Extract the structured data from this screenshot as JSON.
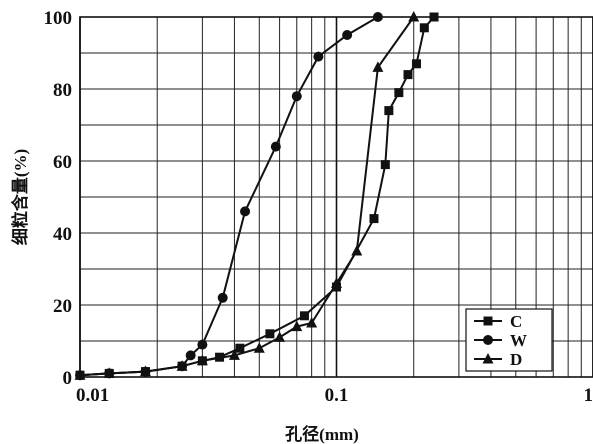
{
  "chart_data": {
    "type": "scatter",
    "title": "",
    "xlabel": "孔径(mm)",
    "ylabel": "细粒含量(%)",
    "xscale": "log",
    "xlim": [
      0.01,
      1
    ],
    "ylim": [
      0,
      100
    ],
    "xticks": [
      0.01,
      0.1,
      1
    ],
    "xtick_labels": [
      "0.01",
      "0.1",
      "1"
    ],
    "yticks": [
      0,
      20,
      40,
      60,
      80,
      100
    ],
    "ytick_labels": [
      "0",
      "20",
      "40",
      "60",
      "80",
      "100"
    ],
    "grid": true,
    "legend_position": "bottom-right",
    "series": [
      {
        "name": "C",
        "marker": "square",
        "x": [
          0.01,
          0.013,
          0.018,
          0.025,
          0.03,
          0.035,
          0.042,
          0.055,
          0.075,
          0.1,
          0.14,
          0.155,
          0.16,
          0.175,
          0.19,
          0.205,
          0.22,
          0.24
        ],
        "y": [
          0.5,
          1,
          1.5,
          3,
          4.5,
          5.5,
          8,
          12,
          17,
          25,
          44,
          59,
          74,
          79,
          84,
          87,
          97,
          100
        ]
      },
      {
        "name": "W",
        "marker": "circle",
        "x": [
          0.01,
          0.013,
          0.018,
          0.025,
          0.027,
          0.03,
          0.036,
          0.044,
          0.058,
          0.07,
          0.085,
          0.11,
          0.145
        ],
        "y": [
          0.5,
          1,
          1.5,
          3,
          6,
          9,
          22,
          46,
          64,
          78,
          89,
          95,
          100
        ]
      },
      {
        "name": "D",
        "marker": "triangle",
        "x": [
          0.01,
          0.013,
          0.018,
          0.025,
          0.03,
          0.04,
          0.05,
          0.06,
          0.07,
          0.08,
          0.1,
          0.12,
          0.145,
          0.2
        ],
        "y": [
          0.5,
          1,
          1.5,
          3,
          4.5,
          6,
          8,
          11,
          14,
          15,
          26,
          35,
          86,
          100
        ]
      }
    ]
  }
}
